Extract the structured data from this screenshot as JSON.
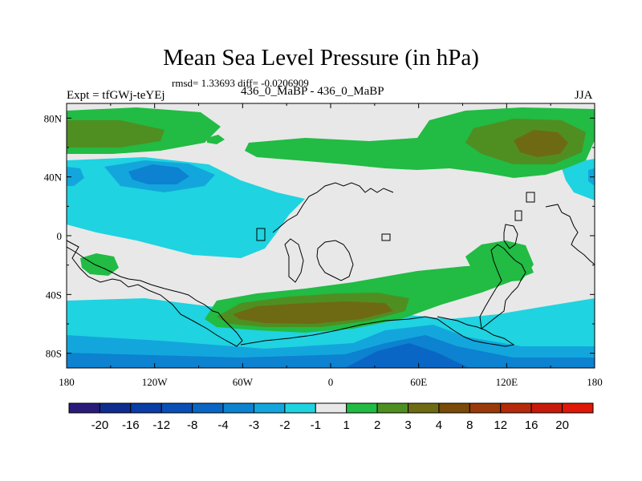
{
  "chart_data": {
    "type": "heatmap",
    "title": "Mean Sea Level Pressure (in hPa)",
    "stats_text": "rmsd= 1.33693 diff= -0.0206909",
    "subtitle": "436_0_MaBP - 436_0_MaBP",
    "left_label": "Expt = tfGWj-teYEj",
    "right_label": "JJA",
    "x_ticks": [
      "180",
      "120W",
      "60W",
      "0",
      "60E",
      "120E",
      "180"
    ],
    "y_ticks": [
      "80N",
      "40N",
      "0",
      "40S",
      "80S"
    ],
    "lon_range": [
      -180,
      180
    ],
    "lat_range": [
      -90,
      90
    ],
    "colorbar": {
      "levels": [
        "-20",
        "-16",
        "-12",
        "-8",
        "-4",
        "-3",
        "-2",
        "-1",
        "1",
        "2",
        "3",
        "4",
        "8",
        "12",
        "16",
        "20"
      ],
      "colors": [
        "#2a1a7a",
        "#0f2d8f",
        "#0a3da6",
        "#0a4fb5",
        "#0a66c4",
        "#0c82d0",
        "#13a6dc",
        "#1fd3e0",
        "#e8e8e8",
        "#22bb44",
        "#4f8f22",
        "#6e6a14",
        "#7a4a08",
        "#9a3a0a",
        "#b42a0a",
        "#c81a0a",
        "#e01808"
      ]
    }
  }
}
